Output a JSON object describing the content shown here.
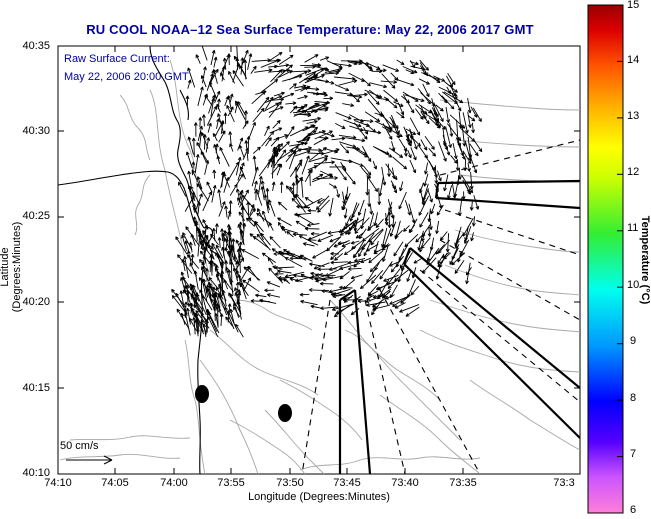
{
  "title": "RU COOL  NOAA–12  Sea Surface Temperature:  May 22, 2006 2017 GMT",
  "annotation": {
    "line1": "Raw Surface Current:",
    "line2": "May 22, 2006 20:00 GMT"
  },
  "scale": {
    "label": "50 cm/s"
  },
  "axes": {
    "xlabel": "Longitude (Degrees:Minutes)",
    "ylabel": "Latitude (Degrees:Minutes)",
    "x_ticks": [
      "74:10",
      "74:05",
      "74:00",
      "73:55",
      "73:50",
      "73:45",
      "73:40",
      "73:35",
      "73:3"
    ],
    "y_ticks": [
      "40:35",
      "40:30",
      "40:25",
      "40:20",
      "40:15",
      "40:10"
    ]
  },
  "colorbar": {
    "title": "Temperature (°C)",
    "ticks": [
      "15",
      "14",
      "13",
      "12",
      "11",
      "10",
      "9",
      "8",
      "7",
      "6"
    ],
    "range": [
      6,
      15
    ]
  },
  "colors": {
    "title": "#0000a0",
    "coast": "#000000",
    "contour": "#a8a8a8"
  }
}
